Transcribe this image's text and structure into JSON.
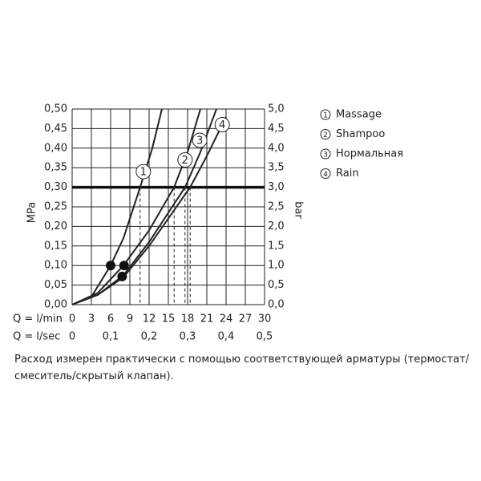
{
  "chart_data": {
    "type": "line",
    "y_label": "MPa",
    "y2_label": "bar",
    "x_label": "Q = l/min",
    "x2_label": "Q = l/sec",
    "xlim": [
      0,
      30
    ],
    "xticks": [
      0,
      3,
      6,
      9,
      12,
      15,
      18,
      21,
      24,
      27,
      30
    ],
    "x2lim": [
      0,
      0.5
    ],
    "x2ticks": [
      0,
      {
        "value": 0.1,
        "label": "0,1"
      },
      {
        "value": 0.2,
        "label": "0,2"
      },
      {
        "value": 0.3,
        "label": "0,3"
      },
      {
        "value": 0.4,
        "label": "0,4"
      },
      {
        "value": 0.5,
        "label": "0,5"
      }
    ],
    "ylim": [
      0,
      0.5
    ],
    "yticks": [
      {
        "value": 0,
        "label": "0,00"
      },
      {
        "value": 0.05,
        "label": "0,05"
      },
      {
        "value": 0.1,
        "label": "0,10"
      },
      {
        "value": 0.15,
        "label": "0,15"
      },
      {
        "value": 0.2,
        "label": "0,20"
      },
      {
        "value": 0.25,
        "label": "0,25"
      },
      {
        "value": 0.3,
        "label": "0,30"
      },
      {
        "value": 0.35,
        "label": "0,35"
      },
      {
        "value": 0.4,
        "label": "0,40"
      },
      {
        "value": 0.45,
        "label": "0,45"
      },
      {
        "value": 0.5,
        "label": "0,50"
      }
    ],
    "y2lim": [
      0,
      5
    ],
    "y2ticks": [
      {
        "value": 0,
        "label": "0,0"
      },
      {
        "value": 0.5,
        "label": "0,5"
      },
      {
        "value": 1,
        "label": "1,0"
      },
      {
        "value": 1.5,
        "label": "1,5"
      },
      {
        "value": 2,
        "label": "2,0"
      },
      {
        "value": 2.5,
        "label": "2,5"
      },
      {
        "value": 3,
        "label": "3,0"
      },
      {
        "value": 3.5,
        "label": "3,5"
      },
      {
        "value": 4,
        "label": "4,0"
      },
      {
        "value": 4.5,
        "label": "4,5"
      },
      {
        "value": 5,
        "label": "5,0"
      }
    ],
    "grid": true,
    "reference_y": 0.3,
    "series": [
      {
        "name": "Massage",
        "number": "1",
        "color": "#222",
        "label_at": [
          11.1,
          0.34
        ],
        "dashed_x": [
          10.6
        ],
        "x": [
          0,
          3,
          6,
          8,
          10.6,
          12.5,
          14
        ],
        "values": [
          0,
          0.02,
          0.1,
          0.17,
          0.3,
          0.4,
          0.5
        ]
      },
      {
        "name": "Shampoo",
        "number": "2",
        "color": "#222",
        "label_at": [
          17.6,
          0.37
        ],
        "dashed_x": [
          15.9
        ],
        "x": [
          0,
          4,
          8,
          12,
          15.9,
          18,
          20
        ],
        "values": [
          0,
          0.03,
          0.1,
          0.19,
          0.3,
          0.39,
          0.5
        ]
      },
      {
        "name": "Нормальная",
        "number": "3",
        "color": "#222",
        "label_at": [
          19.9,
          0.42
        ],
        "dashed_x": [
          17.6
        ],
        "x": [
          0,
          4,
          8,
          12,
          17.6,
          20,
          22.5
        ],
        "values": [
          0,
          0.025,
          0.075,
          0.16,
          0.3,
          0.39,
          0.5
        ]
      },
      {
        "name": "Rain",
        "number": "4",
        "color": "#222",
        "label_at": [
          23.4,
          0.46
        ],
        "dashed_x": [
          18.4
        ],
        "x": [
          0,
          4,
          8,
          12,
          18.4,
          21,
          24
        ],
        "values": [
          0,
          0.025,
          0.07,
          0.15,
          0.3,
          0.38,
          0.48
        ]
      }
    ],
    "points": {
      "x": [
        6,
        8.1,
        7.8
      ],
      "values": [
        0.1,
        0.1,
        0.072
      ]
    },
    "note": "Расход измерен практически с помощью соответствующей арматуры (термостат/смеситель/скрытый клапан)."
  }
}
